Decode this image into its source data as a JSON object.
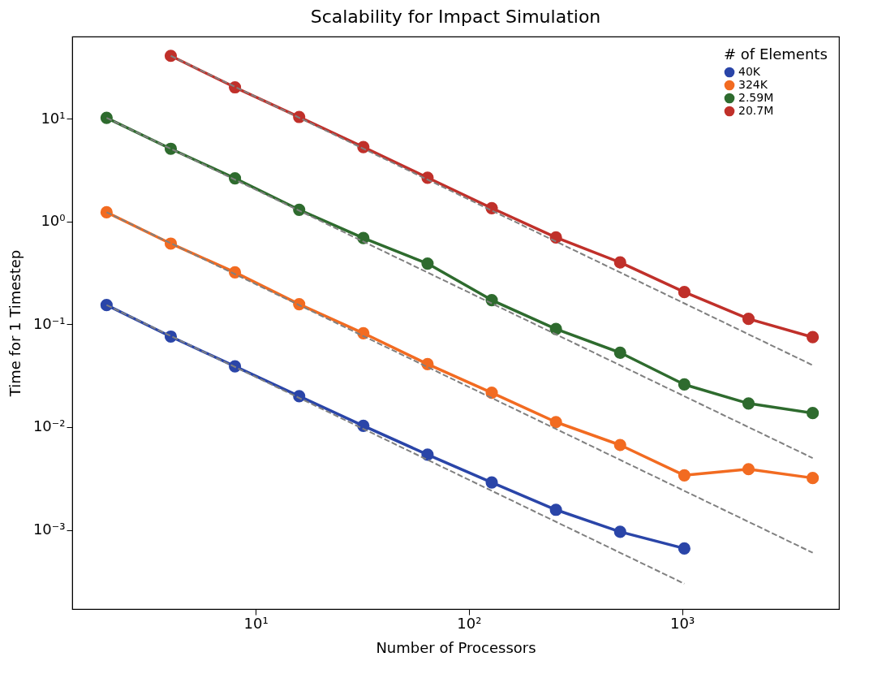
{
  "chart_data": {
    "type": "line",
    "title": "Scalability for Impact Simulation",
    "xlabel": "Number of Processors",
    "ylabel": "Time for 1 Timestep",
    "legend_title": "# of Elements",
    "legend": "top right",
    "grid": false,
    "log": "xy",
    "marker": "circle",
    "line_style": "solid",
    "xlim": [
      1.38,
      5440
    ],
    "ylim": [
      0.00017,
      63
    ],
    "xticks": [
      {
        "value": 10,
        "label": "10¹"
      },
      {
        "value": 100,
        "label": "10²"
      },
      {
        "value": 1000,
        "label": "10³"
      }
    ],
    "yticks": [
      {
        "value": 0.001,
        "label": "10⁻³"
      },
      {
        "value": 0.01,
        "label": "10⁻²"
      },
      {
        "value": 0.1,
        "label": "10⁻¹"
      },
      {
        "value": 1,
        "label": "10⁰"
      },
      {
        "value": 10,
        "label": "10¹"
      }
    ],
    "x": [
      2,
      4,
      8,
      16,
      32,
      64,
      128,
      256,
      512,
      1024,
      2048,
      4096
    ],
    "series": [
      {
        "name": "40K",
        "color": "#2a45a8",
        "x": [
          2,
          4,
          8,
          16,
          32,
          64,
          128,
          256,
          512,
          1024
        ],
        "values": [
          0.154,
          0.076,
          0.039,
          0.02,
          0.0103,
          0.0054,
          0.0029,
          0.00157,
          0.00096,
          0.00066
        ]
      },
      {
        "name": "324K",
        "color": "#f26b21",
        "values": [
          1.23,
          0.61,
          0.32,
          0.157,
          0.082,
          0.041,
          0.0216,
          0.0112,
          0.0067,
          0.0034,
          0.0039,
          0.0032
        ]
      },
      {
        "name": "2.59M",
        "color": "#2e6b2e",
        "values": [
          10.2,
          5.1,
          2.63,
          1.3,
          0.69,
          0.39,
          0.172,
          0.09,
          0.053,
          0.026,
          0.017,
          0.0137
        ]
      },
      {
        "name": "20.7M",
        "color": "#c0302a",
        "x": [
          4,
          8,
          16,
          32,
          64,
          128,
          256,
          512,
          1024,
          2048,
          4096
        ],
        "values": [
          40.9,
          20.2,
          10.4,
          5.3,
          2.67,
          1.35,
          0.7,
          0.4,
          0.206,
          0.113,
          0.075
        ]
      },
      {
        "type": "line",
        "color": "#808080",
        "line_style": "dashed",
        "marker": "none",
        "x": [
          2,
          1024
        ],
        "values": [
          0.154,
          0.0003
        ]
      },
      {
        "type": "line",
        "color": "#808080",
        "line_style": "dashed",
        "marker": "none",
        "x": [
          2,
          4096
        ],
        "values": [
          1.23,
          0.0006
        ]
      },
      {
        "type": "line",
        "color": "#808080",
        "line_style": "dashed",
        "marker": "none",
        "x": [
          2,
          4096
        ],
        "values": [
          10.2,
          0.005
        ]
      },
      {
        "type": "line",
        "color": "#808080",
        "line_style": "dashed",
        "marker": "none",
        "x": [
          4,
          4096
        ],
        "values": [
          40.9,
          0.04
        ]
      }
    ]
  }
}
